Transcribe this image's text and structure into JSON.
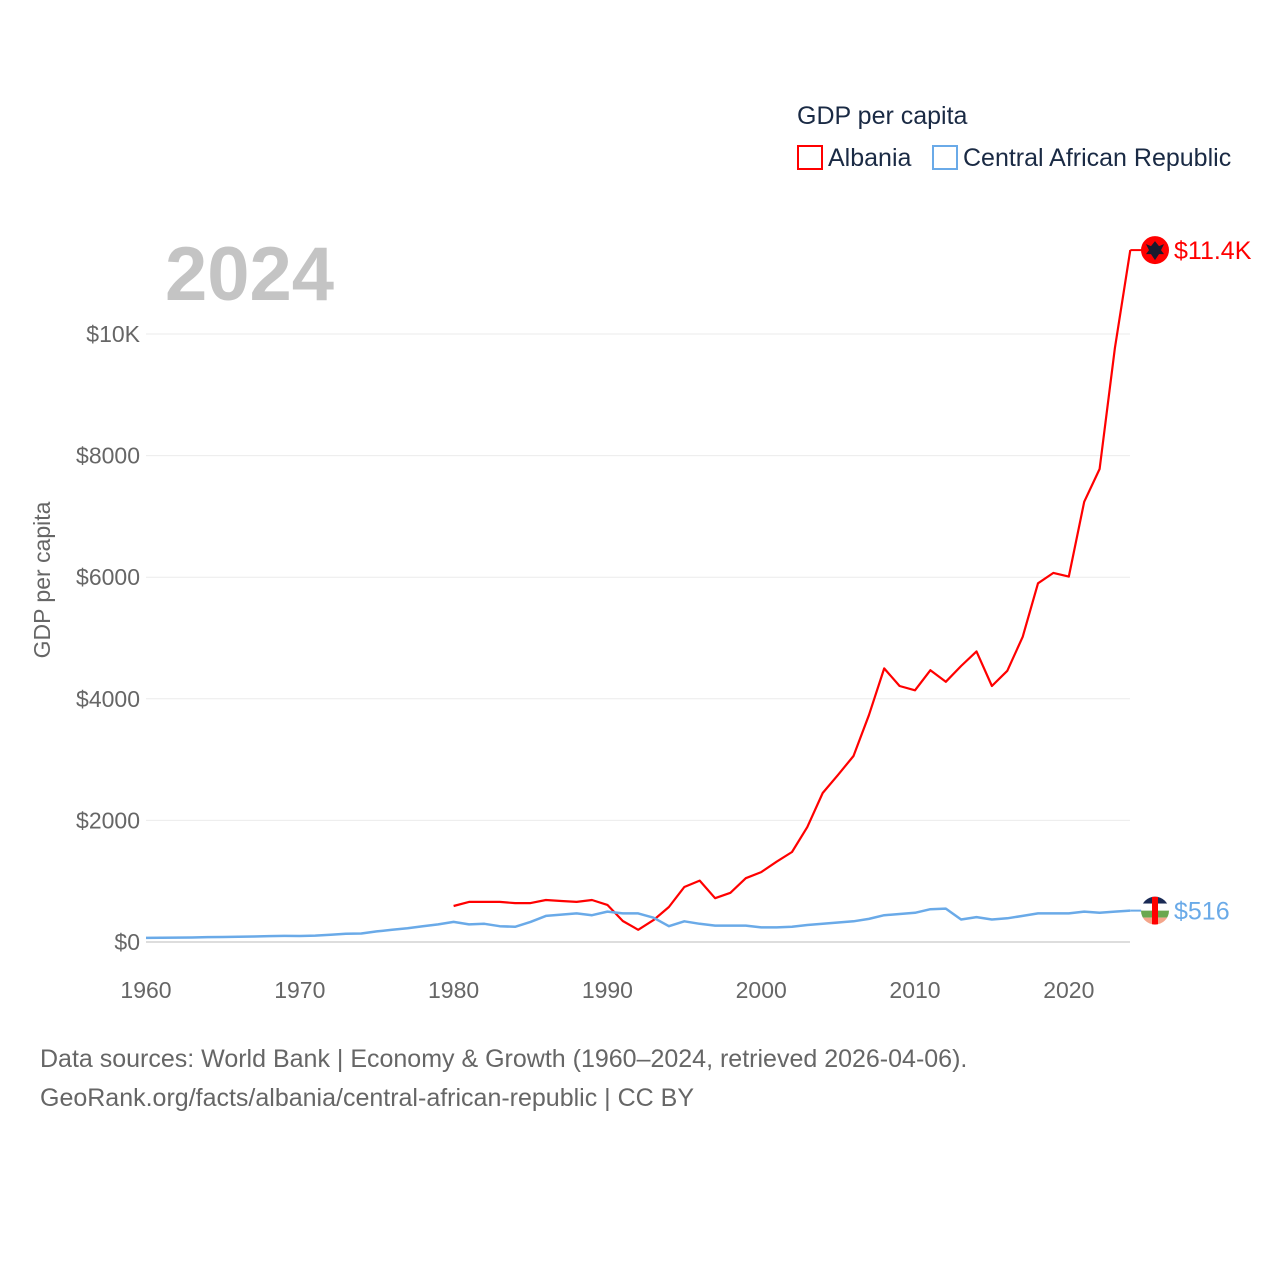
{
  "chart_data": {
    "type": "line",
    "title": "GDP per capita",
    "year_label": "2024",
    "ylabel": "GDP per capita",
    "xlabel": "",
    "xlim": [
      1960,
      2024
    ],
    "ylim": [
      0,
      11400
    ],
    "x_ticks": [
      1960,
      1970,
      1980,
      1990,
      2000,
      2010,
      2020
    ],
    "y_ticks": [
      {
        "v": 0,
        "label": "$0"
      },
      {
        "v": 2000,
        "label": "$2000"
      },
      {
        "v": 4000,
        "label": "$4000"
      },
      {
        "v": 6000,
        "label": "$6000"
      },
      {
        "v": 8000,
        "label": "$8000"
      },
      {
        "v": 10000,
        "label": "$10K"
      }
    ],
    "grid": true,
    "legend_position": "top-right",
    "series": [
      {
        "name": "Albania",
        "color": "#ff0000",
        "end_label": "$11.4K",
        "start_year": 1980,
        "values": [
          592,
          660,
          660,
          660,
          640,
          640,
          690,
          675,
          660,
          690,
          610,
          345,
          200,
          360,
          575,
          905,
          1010,
          720,
          810,
          1050,
          1150,
          1320,
          1480,
          1890,
          2450,
          2750,
          3060,
          3730,
          4500,
          4210,
          4140,
          4470,
          4280,
          4540,
          4780,
          4210,
          4460,
          5020,
          5900,
          6070,
          6010,
          7240,
          7780,
          9770,
          11380
        ]
      },
      {
        "name": "Central African Republic",
        "color": "#6aaae8",
        "end_label": "$516",
        "start_year": 1960,
        "values": [
          67,
          70,
          72,
          74,
          80,
          83,
          85,
          90,
          97,
          100,
          98,
          105,
          118,
          135,
          140,
          175,
          200,
          225,
          260,
          290,
          330,
          290,
          300,
          260,
          250,
          330,
          430,
          450,
          470,
          440,
          500,
          470,
          470,
          400,
          260,
          340,
          300,
          270,
          270,
          270,
          240,
          240,
          250,
          280,
          300,
          320,
          340,
          380,
          440,
          460,
          480,
          540,
          550,
          370,
          410,
          370,
          390,
          430,
          470,
          470,
          470,
          500,
          480,
          500,
          516
        ]
      }
    ]
  },
  "footer": {
    "line1": "Data sources: World Bank | Economy & Growth (1960–2024, retrieved 2026-04-06).",
    "line2": "GeoRank.org/facts/albania/central-african-republic | CC BY"
  }
}
